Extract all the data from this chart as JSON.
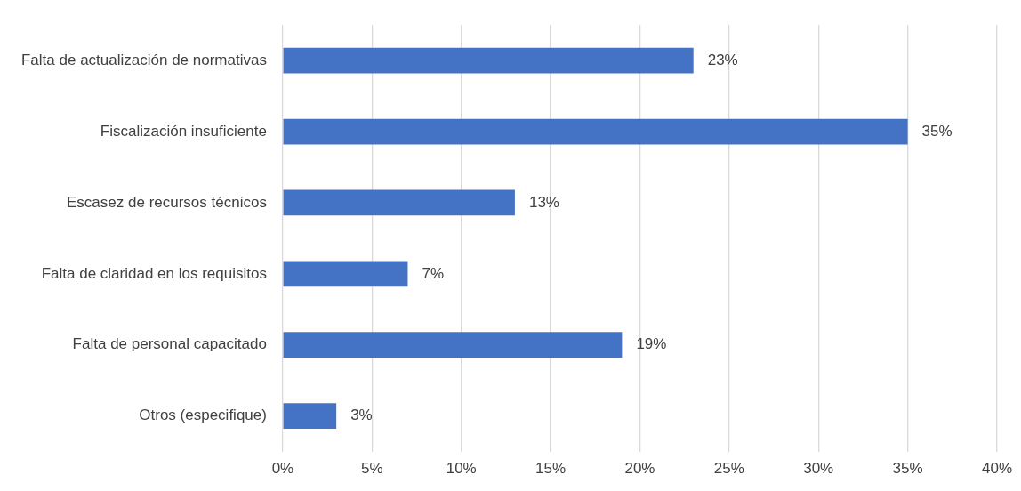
{
  "chart_data": {
    "type": "bar",
    "orientation": "horizontal",
    "categories": [
      "Falta de actualización de normativas",
      "Fiscalización insuficiente",
      "Escasez de recursos técnicos",
      "Falta de claridad en los requisitos",
      "Falta de personal capacitado",
      "Otros (especifique)"
    ],
    "values": [
      23,
      35,
      13,
      7,
      19,
      3
    ],
    "value_labels": [
      "23%",
      "35%",
      "13%",
      "7%",
      "19%",
      "3%"
    ],
    "color": "#4472c4",
    "xlim": [
      0,
      40
    ],
    "xticks": [
      {
        "value": 0,
        "label": "0%"
      },
      {
        "value": 5,
        "label": "5%"
      },
      {
        "value": 10,
        "label": "10%"
      },
      {
        "value": 15,
        "label": "15%"
      },
      {
        "value": 20,
        "label": "20%"
      },
      {
        "value": 25,
        "label": "25%"
      },
      {
        "value": 30,
        "label": "30%"
      },
      {
        "value": 35,
        "label": "35%"
      },
      {
        "value": 40,
        "label": "40%"
      }
    ],
    "grid": "x",
    "legend": false
  }
}
